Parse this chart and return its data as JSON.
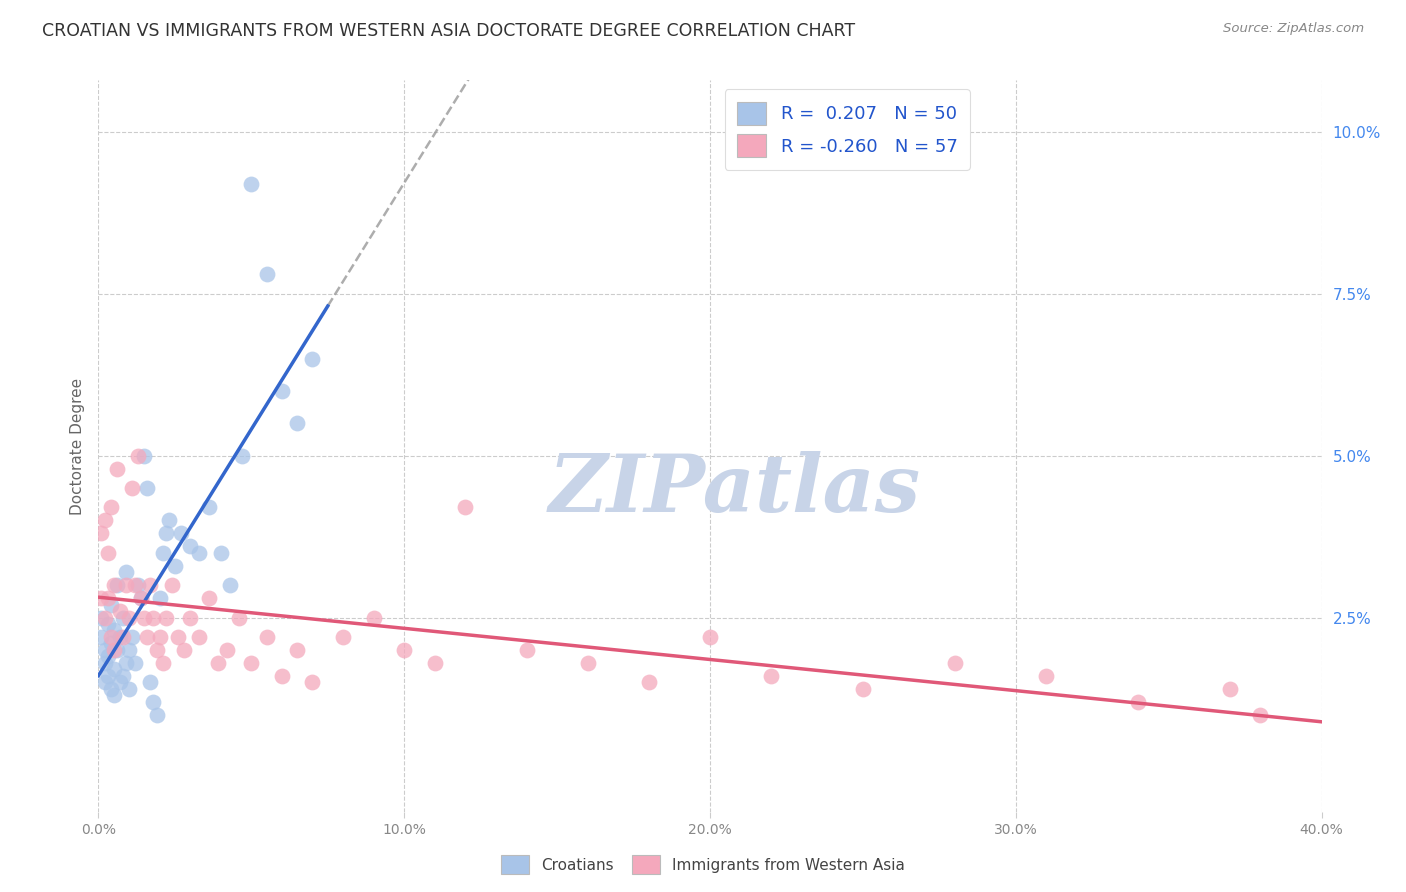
{
  "title": "CROATIAN VS IMMIGRANTS FROM WESTERN ASIA DOCTORATE DEGREE CORRELATION CHART",
  "source": "Source: ZipAtlas.com",
  "ylabel": "Doctorate Degree",
  "right_yticks": [
    "10.0%",
    "7.5%",
    "5.0%",
    "2.5%"
  ],
  "right_ytick_vals": [
    0.1,
    0.075,
    0.05,
    0.025
  ],
  "xlim": [
    0.0,
    0.4
  ],
  "ylim": [
    -0.005,
    0.108
  ],
  "background_color": "#ffffff",
  "grid_color": "#cccccc",
  "watermark_text": "ZIPatlas",
  "watermark_color": "#c8d4e8",
  "croatian_color": "#a8c4e8",
  "immigrant_color": "#f4a8bc",
  "croatian_line_color": "#3366cc",
  "immigrant_line_color": "#e05878",
  "dashed_line_color": "#999999",
  "croatian_R": 0.207,
  "croatian_N": 50,
  "immigrant_R": -0.26,
  "immigrant_N": 57,
  "croatian_x": [
    0.001,
    0.001,
    0.002,
    0.002,
    0.002,
    0.003,
    0.003,
    0.003,
    0.004,
    0.004,
    0.004,
    0.005,
    0.005,
    0.005,
    0.006,
    0.006,
    0.007,
    0.007,
    0.008,
    0.008,
    0.009,
    0.009,
    0.01,
    0.01,
    0.011,
    0.012,
    0.013,
    0.014,
    0.015,
    0.016,
    0.017,
    0.018,
    0.019,
    0.02,
    0.021,
    0.022,
    0.023,
    0.025,
    0.027,
    0.03,
    0.033,
    0.036,
    0.04,
    0.043,
    0.047,
    0.05,
    0.055,
    0.06,
    0.065,
    0.07
  ],
  "croatian_y": [
    0.022,
    0.025,
    0.018,
    0.02,
    0.015,
    0.024,
    0.019,
    0.016,
    0.021,
    0.014,
    0.027,
    0.017,
    0.023,
    0.013,
    0.02,
    0.03,
    0.015,
    0.022,
    0.016,
    0.025,
    0.018,
    0.032,
    0.02,
    0.014,
    0.022,
    0.018,
    0.03,
    0.028,
    0.05,
    0.045,
    0.015,
    0.012,
    0.01,
    0.028,
    0.035,
    0.038,
    0.04,
    0.033,
    0.038,
    0.036,
    0.035,
    0.042,
    0.035,
    0.03,
    0.05,
    0.092,
    0.078,
    0.06,
    0.055,
    0.065
  ],
  "immigrant_x": [
    0.001,
    0.001,
    0.002,
    0.002,
    0.003,
    0.003,
    0.004,
    0.004,
    0.005,
    0.005,
    0.006,
    0.007,
    0.008,
    0.009,
    0.01,
    0.011,
    0.012,
    0.013,
    0.014,
    0.015,
    0.016,
    0.017,
    0.018,
    0.019,
    0.02,
    0.021,
    0.022,
    0.024,
    0.026,
    0.028,
    0.03,
    0.033,
    0.036,
    0.039,
    0.042,
    0.046,
    0.05,
    0.055,
    0.06,
    0.065,
    0.07,
    0.08,
    0.09,
    0.1,
    0.11,
    0.12,
    0.14,
    0.16,
    0.18,
    0.2,
    0.22,
    0.25,
    0.28,
    0.31,
    0.34,
    0.37,
    0.38
  ],
  "immigrant_y": [
    0.028,
    0.038,
    0.025,
    0.04,
    0.035,
    0.028,
    0.022,
    0.042,
    0.03,
    0.02,
    0.048,
    0.026,
    0.022,
    0.03,
    0.025,
    0.045,
    0.03,
    0.05,
    0.028,
    0.025,
    0.022,
    0.03,
    0.025,
    0.02,
    0.022,
    0.018,
    0.025,
    0.03,
    0.022,
    0.02,
    0.025,
    0.022,
    0.028,
    0.018,
    0.02,
    0.025,
    0.018,
    0.022,
    0.016,
    0.02,
    0.015,
    0.022,
    0.025,
    0.02,
    0.018,
    0.042,
    0.02,
    0.018,
    0.015,
    0.022,
    0.016,
    0.014,
    0.018,
    0.016,
    0.012,
    0.014,
    0.01
  ]
}
